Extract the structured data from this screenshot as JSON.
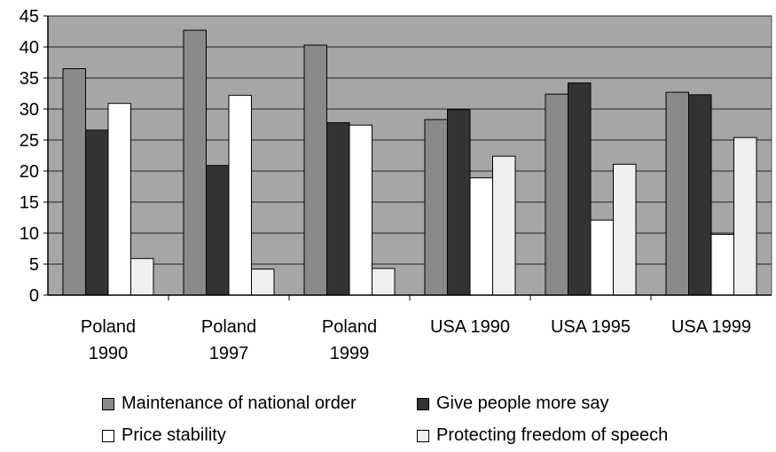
{
  "chart_data": {
    "type": "bar",
    "categories": [
      [
        "Poland",
        "1990"
      ],
      [
        "Poland",
        "1997"
      ],
      [
        "Poland",
        "1999"
      ],
      [
        "USA 1990"
      ],
      [
        "USA 1995"
      ],
      [
        "USA 1999"
      ]
    ],
    "series": [
      {
        "name": "Maintenance of national order",
        "color": "#8a8a8a",
        "values": [
          36.5,
          42.7,
          40.3,
          28.3,
          32.4,
          32.7
        ]
      },
      {
        "name": "Give people more say",
        "color": "#333333",
        "values": [
          26.6,
          20.9,
          27.8,
          29.9,
          34.2,
          32.3
        ]
      },
      {
        "name": "Price stability",
        "color": "#ffffff",
        "values": [
          30.9,
          32.2,
          27.4,
          18.9,
          12.1,
          9.8
        ]
      },
      {
        "name": "Protecting freedom of speech",
        "color": "#efefef",
        "values": [
          5.9,
          4.2,
          4.3,
          22.4,
          21.1,
          25.4
        ]
      }
    ],
    "ylim": [
      0,
      45
    ],
    "yticks": [
      0,
      5,
      10,
      15,
      20,
      25,
      30,
      35,
      40,
      45
    ],
    "grid": true,
    "plot_background": "#a6a6a6",
    "legend_position": "bottom"
  }
}
